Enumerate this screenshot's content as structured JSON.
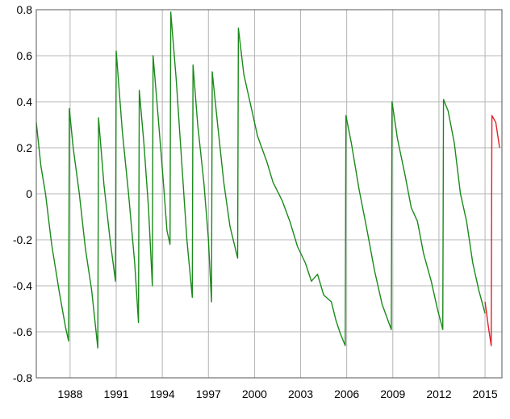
{
  "chart_data": {
    "type": "line",
    "title": "",
    "xlabel": "",
    "ylabel": "",
    "xlim": [
      1985.8,
      2016.1
    ],
    "ylim": [
      -0.8,
      0.8
    ],
    "grid": true,
    "legend": "none",
    "x_ticks": [
      1988,
      1991,
      1994,
      1997,
      2000,
      2003,
      2006,
      2009,
      2012,
      2015
    ],
    "x_tick_labels": [
      "1988",
      "1991",
      "1994",
      "1997",
      "2000",
      "2003",
      "2006",
      "2009",
      "2012",
      "2015"
    ],
    "y_ticks": [
      0.8,
      0.6,
      0.4,
      0.2,
      0,
      -0.2,
      -0.4,
      -0.6,
      -0.8
    ],
    "y_tick_labels": [
      "0.8",
      "0.6",
      "0.4",
      "0.2",
      "0",
      "-0.2",
      "-0.4",
      "-0.6",
      "-0.8"
    ],
    "series": [
      {
        "color": "#1a8a1a",
        "points": [
          [
            1985.8,
            0.31
          ],
          [
            1986.1,
            0.12
          ],
          [
            1986.4,
            0.0
          ],
          [
            1986.8,
            -0.22
          ],
          [
            1987.3,
            -0.43
          ],
          [
            1987.7,
            -0.58
          ],
          [
            1987.9,
            -0.64
          ],
          [
            1987.95,
            0.37
          ],
          [
            1988.2,
            0.2
          ],
          [
            1988.6,
            0.0
          ],
          [
            1989.0,
            -0.24
          ],
          [
            1989.4,
            -0.42
          ],
          [
            1989.8,
            -0.67
          ],
          [
            1989.85,
            0.33
          ],
          [
            1990.2,
            0.04
          ],
          [
            1990.6,
            -0.2
          ],
          [
            1990.95,
            -0.38
          ],
          [
            1991.0,
            0.62
          ],
          [
            1991.4,
            0.27
          ],
          [
            1991.8,
            0.0
          ],
          [
            1992.2,
            -0.3
          ],
          [
            1992.45,
            -0.56
          ],
          [
            1992.5,
            0.45
          ],
          [
            1992.8,
            0.22
          ],
          [
            1993.1,
            -0.06
          ],
          [
            1993.35,
            -0.4
          ],
          [
            1993.4,
            0.6
          ],
          [
            1993.7,
            0.36
          ],
          [
            1993.95,
            0.15
          ],
          [
            1994.1,
            0.02
          ],
          [
            1994.3,
            -0.16
          ],
          [
            1994.5,
            -0.22
          ],
          [
            1994.55,
            0.79
          ],
          [
            1994.9,
            0.5
          ],
          [
            1995.3,
            0.1
          ],
          [
            1995.6,
            -0.2
          ],
          [
            1995.95,
            -0.45
          ],
          [
            1996.0,
            0.56
          ],
          [
            1996.3,
            0.3
          ],
          [
            1996.7,
            0.05
          ],
          [
            1997.0,
            -0.2
          ],
          [
            1997.2,
            -0.47
          ],
          [
            1997.25,
            0.53
          ],
          [
            1997.6,
            0.3
          ],
          [
            1998.0,
            0.05
          ],
          [
            1998.4,
            -0.14
          ],
          [
            1998.9,
            -0.28
          ],
          [
            1998.95,
            0.72
          ],
          [
            1999.3,
            0.52
          ],
          [
            1999.7,
            0.4
          ],
          [
            2000.2,
            0.25
          ],
          [
            2000.8,
            0.14
          ],
          [
            2001.2,
            0.05
          ],
          [
            2001.8,
            -0.03
          ],
          [
            2002.3,
            -0.12
          ],
          [
            2002.8,
            -0.23
          ],
          [
            2003.3,
            -0.3
          ],
          [
            2003.7,
            -0.38
          ],
          [
            2004.1,
            -0.35
          ],
          [
            2004.5,
            -0.44
          ],
          [
            2005.0,
            -0.47
          ],
          [
            2005.3,
            -0.55
          ],
          [
            2005.6,
            -0.61
          ],
          [
            2005.9,
            -0.66
          ],
          [
            2005.95,
            0.34
          ],
          [
            2006.3,
            0.22
          ],
          [
            2006.8,
            0.02
          ],
          [
            2007.3,
            -0.15
          ],
          [
            2007.8,
            -0.33
          ],
          [
            2008.3,
            -0.48
          ],
          [
            2008.9,
            -0.59
          ],
          [
            2008.95,
            0.4
          ],
          [
            2009.3,
            0.24
          ],
          [
            2009.8,
            0.08
          ],
          [
            2010.2,
            -0.06
          ],
          [
            2010.6,
            -0.12
          ],
          [
            2011.0,
            -0.26
          ],
          [
            2011.5,
            -0.38
          ],
          [
            2011.9,
            -0.5
          ],
          [
            2012.25,
            -0.59
          ],
          [
            2012.3,
            0.41
          ],
          [
            2012.6,
            0.36
          ],
          [
            2013.0,
            0.22
          ],
          [
            2013.4,
            0.0
          ],
          [
            2013.8,
            -0.12
          ],
          [
            2014.2,
            -0.3
          ],
          [
            2014.6,
            -0.42
          ],
          [
            2015.0,
            -0.52
          ]
        ]
      },
      {
        "color": "#e0202a",
        "points": [
          [
            2015.0,
            -0.47
          ],
          [
            2015.2,
            -0.57
          ],
          [
            2015.4,
            -0.66
          ],
          [
            2015.45,
            0.34
          ],
          [
            2015.7,
            0.31
          ],
          [
            2015.95,
            0.2
          ]
        ]
      }
    ]
  }
}
